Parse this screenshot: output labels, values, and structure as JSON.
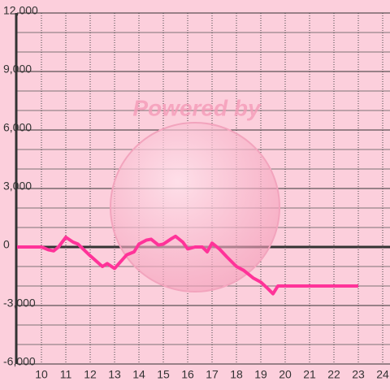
{
  "chart_data": {
    "type": "line",
    "watermark": "Powered by",
    "x": [
      9,
      9.5,
      10,
      10.3,
      10.5,
      10.7,
      11,
      11.3,
      11.5,
      12,
      12.5,
      12.7,
      13,
      13.5,
      13.8,
      14,
      14.3,
      14.5,
      14.8,
      15,
      15.3,
      15.5,
      15.8,
      16,
      16.3,
      16.6,
      16.8,
      17,
      17.3,
      17.6,
      18,
      18.3,
      18.7,
      19,
      19.3,
      19.5,
      19.7,
      20,
      21,
      22,
      23
    ],
    "series": [
      {
        "color": "#ff3399",
        "values": [
          0,
          0,
          0,
          -150,
          -200,
          0,
          500,
          250,
          150,
          -450,
          -1000,
          -850,
          -1100,
          -400,
          -250,
          150,
          350,
          400,
          100,
          150,
          400,
          550,
          250,
          -100,
          0,
          0,
          -250,
          200,
          -100,
          -500,
          -1000,
          -1200,
          -1600,
          -1800,
          -2150,
          -2400,
          -2000,
          -2000,
          -2000,
          -2000,
          -2000
        ]
      }
    ],
    "xlim": [
      9,
      24.3
    ],
    "xticks": [
      10,
      11,
      12,
      13,
      14,
      15,
      16,
      17,
      18,
      19,
      20,
      21,
      22,
      23,
      24
    ],
    "ylim": [
      -6000,
      12000
    ],
    "yticks": [
      {
        "value": -6000,
        "label": "-6,000"
      },
      {
        "value": -3000,
        "label": "-3,000"
      },
      0,
      {
        "value": 3000,
        "label": "3,000"
      },
      {
        "value": 6000,
        "label": "6,000"
      },
      {
        "value": 9000,
        "label": "9,000"
      },
      {
        "value": 12000,
        "label": "12,000"
      }
    ],
    "y_minor_ticks": [
      -5000,
      -4000,
      -2000,
      -1000,
      1000,
      2000,
      4000,
      5000,
      7000,
      8000,
      10000,
      11000
    ],
    "grid": true
  }
}
